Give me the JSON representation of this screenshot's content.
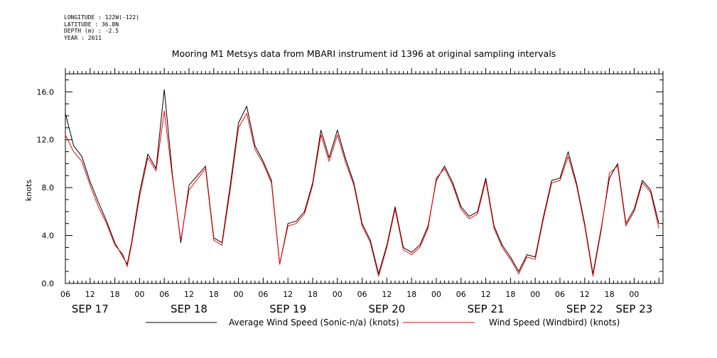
{
  "meta": {
    "longitude": "LONGITUDE : 122W(-122)",
    "latitude": "LATITUDE : 36.8N",
    "depth": "DEPTH (m) : -2.5",
    "year": "YEAR : 2011"
  },
  "chart_data": {
    "type": "line",
    "title": "Mooring M1 Metsys data from MBARI instrument id 1396 at original sampling intervals",
    "ylabel": "knots",
    "ylim": [
      0,
      17.5
    ],
    "yticks": [
      0,
      4,
      8,
      12,
      16
    ],
    "ytick_labels": [
      "0.0",
      "4.0",
      "8.0",
      "12.0",
      "16.0"
    ],
    "xlim_hours": [
      0,
      145
    ],
    "xtick_hours": [
      0,
      6,
      12,
      18,
      24,
      30,
      36,
      42,
      48,
      54,
      60,
      66,
      72,
      78,
      84,
      90,
      96,
      102,
      108,
      114,
      120,
      126,
      132,
      138,
      144
    ],
    "xtick_labels": [
      "06",
      "12",
      "18",
      "00",
      "06",
      "12",
      "18",
      "00",
      "06",
      "12",
      "18",
      "00",
      "06",
      "12",
      "18",
      "00",
      "06",
      "12",
      "18",
      "00",
      "06",
      "12",
      "18",
      "00",
      ""
    ],
    "date_labels": [
      {
        "label": "SEP 17",
        "hour": 6
      },
      {
        "label": "SEP 18",
        "hour": 30
      },
      {
        "label": "SEP 19",
        "hour": 54
      },
      {
        "label": "SEP 20",
        "hour": 78
      },
      {
        "label": "SEP 21",
        "hour": 102
      },
      {
        "label": "SEP 22",
        "hour": 126
      },
      {
        "label": "SEP 23",
        "hour": 138
      }
    ],
    "grid": false,
    "legend_position": "bottom",
    "x_hours": [
      0,
      2,
      4,
      6,
      8,
      10,
      12,
      14,
      15,
      16,
      18,
      20,
      22,
      24,
      26,
      28,
      30,
      34,
      36,
      38,
      40,
      42,
      44,
      46,
      48,
      50,
      52,
      54,
      56,
      58,
      60,
      62,
      64,
      66,
      68,
      70,
      72,
      74,
      76,
      78,
      80,
      82,
      84,
      86,
      88,
      90,
      92,
      94,
      96,
      98,
      100,
      102,
      104,
      106,
      108,
      110,
      112,
      114,
      116,
      118,
      120,
      122,
      124,
      126,
      128,
      130,
      132,
      134,
      136,
      138,
      140,
      142,
      144
    ],
    "series": [
      {
        "name": "Average Wind Speed (Sonic-n/a) (knots)",
        "color": "#000000",
        "values": [
          14.2,
          11.5,
          10.6,
          8.5,
          6.8,
          5.2,
          3.4,
          2.2,
          1.6,
          3.3,
          7.6,
          10.8,
          9.6,
          16.2,
          9.0,
          3.4,
          8.2,
          9.8,
          3.8,
          3.4,
          8.2,
          13.4,
          14.8,
          11.5,
          10.2,
          8.6,
          1.6,
          5.0,
          5.2,
          6.0,
          8.4,
          12.8,
          10.5,
          12.8,
          10.4,
          8.4,
          5.0,
          3.6,
          0.8,
          3.2,
          6.4,
          3.0,
          2.6,
          3.2,
          4.8,
          8.6,
          9.8,
          8.4,
          6.4,
          5.6,
          6.0,
          8.8,
          4.8,
          3.2,
          2.2,
          1.0,
          2.4,
          2.2,
          5.6,
          8.6,
          8.8,
          11.0,
          8.4,
          5.0,
          0.8,
          4.6,
          8.8,
          10.0,
          5.0,
          6.2,
          8.6,
          7.8,
          5.0
        ]
      },
      {
        "name": "Wind Speed (Windbird) (knots)",
        "color": "#ff0000",
        "values": [
          12.4,
          11.0,
          10.2,
          8.2,
          6.4,
          5.0,
          3.2,
          2.4,
          1.4,
          3.1,
          7.2,
          10.5,
          9.4,
          14.4,
          8.8,
          3.6,
          7.8,
          9.6,
          3.6,
          3.2,
          7.8,
          13.0,
          14.2,
          11.2,
          10.0,
          8.4,
          1.6,
          4.8,
          5.0,
          5.8,
          8.2,
          12.4,
          10.2,
          12.4,
          10.1,
          8.2,
          4.8,
          3.4,
          0.6,
          3.0,
          6.2,
          2.8,
          2.4,
          3.0,
          4.6,
          8.8,
          9.6,
          8.2,
          6.2,
          5.4,
          5.8,
          8.6,
          4.6,
          3.0,
          2.0,
          0.8,
          2.2,
          2.0,
          5.4,
          8.4,
          8.6,
          10.6,
          8.2,
          4.8,
          0.6,
          4.4,
          9.2,
          9.8,
          4.8,
          6.0,
          8.4,
          7.6,
          4.6
        ]
      }
    ]
  }
}
